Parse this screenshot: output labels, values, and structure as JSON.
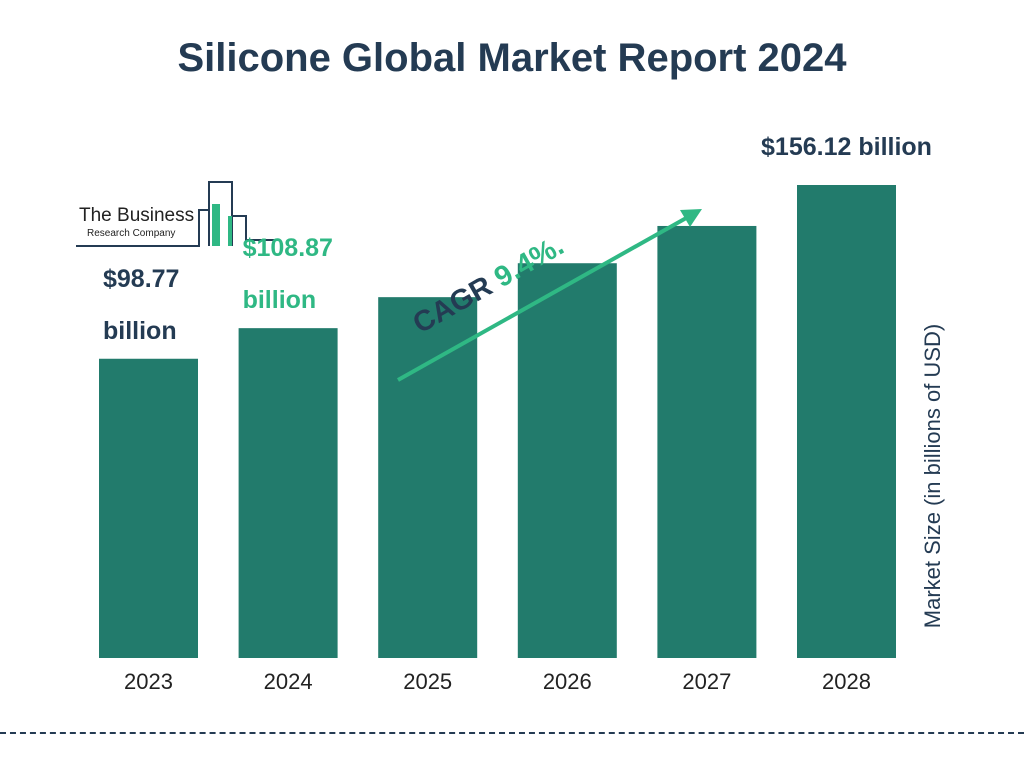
{
  "page": {
    "title": "Silicone Global Market Report 2024",
    "logo": {
      "line1": "The Business",
      "line2": "Research Company"
    }
  },
  "colors": {
    "bar": "#227b6c",
    "accent_green": "#2fb884",
    "navy": "#243b53"
  },
  "chart_data": {
    "type": "bar",
    "title": "Silicone Global Market Report 2024",
    "categories": [
      "2023",
      "2024",
      "2025",
      "2026",
      "2027",
      "2028"
    ],
    "values": [
      98.77,
      108.87,
      119.1,
      130.3,
      142.6,
      156.12
    ],
    "ylabel": "Market Size (in billions of USD)",
    "xlabel": "",
    "data_labels": [
      {
        "category": "2023",
        "lines": [
          "$98.77",
          "billion"
        ],
        "color": "#243b53"
      },
      {
        "category": "2024",
        "lines": [
          "$108.87",
          "billion"
        ],
        "color": "#2fb884"
      },
      {
        "category": "2028",
        "lines": [
          "$156.12 billion"
        ],
        "color": "#243b53"
      }
    ],
    "annotation": {
      "label": "CAGR",
      "value": "9.4%."
    },
    "grid": false,
    "legend": "none"
  }
}
